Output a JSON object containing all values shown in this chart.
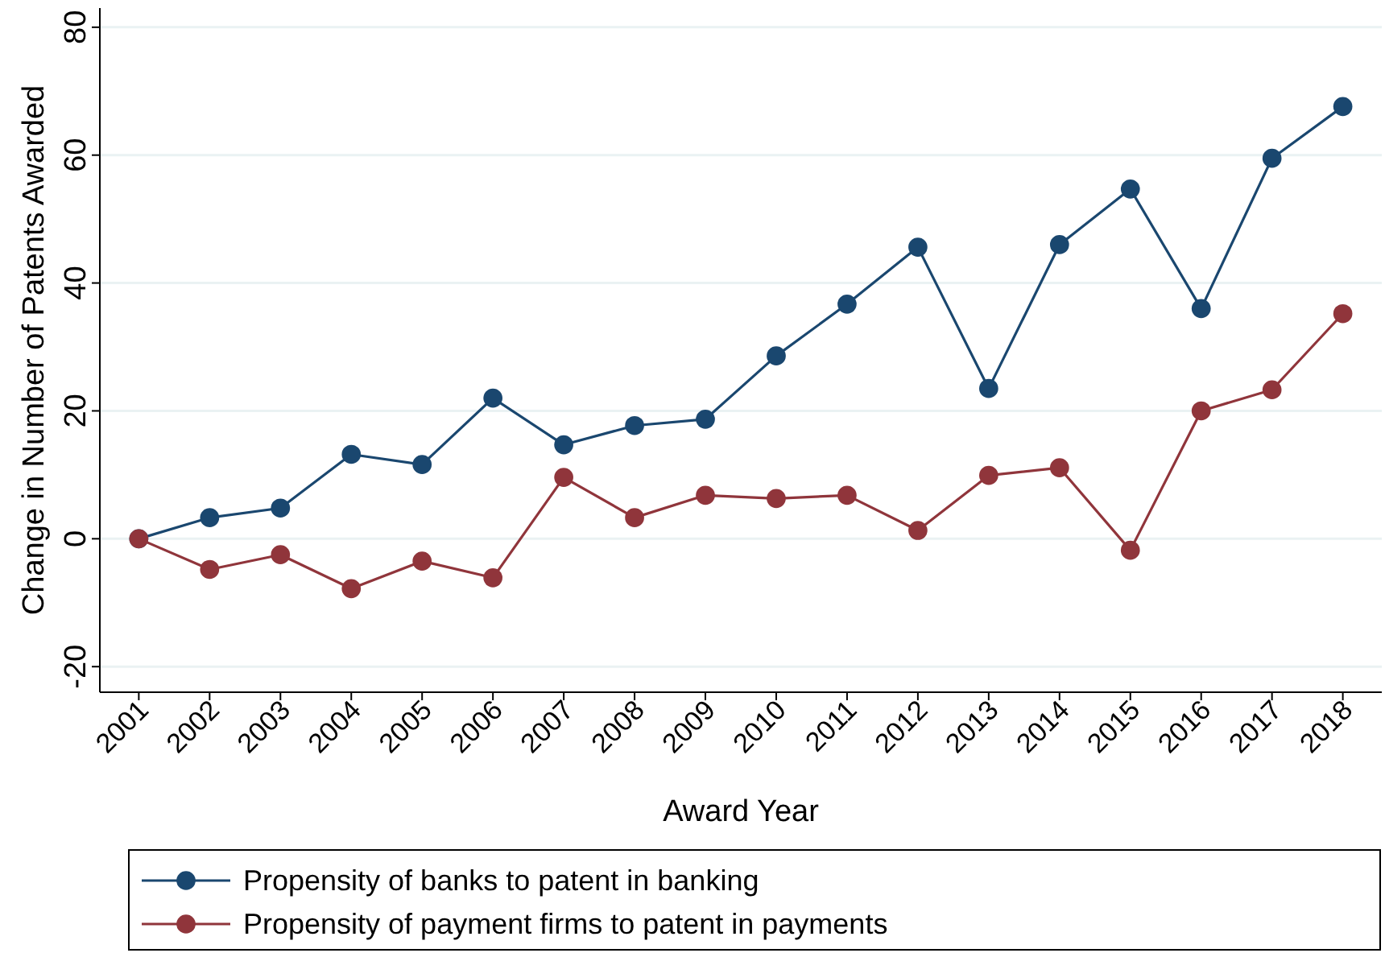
{
  "chart_data": {
    "type": "line",
    "xlabel": "Award Year",
    "ylabel": "Change in Number of Patents Awarded",
    "categories": [
      "2001",
      "2002",
      "2003",
      "2004",
      "2005",
      "2006",
      "2007",
      "2008",
      "2009",
      "2010",
      "2011",
      "2012",
      "2013",
      "2014",
      "2015",
      "2016",
      "2017",
      "2018"
    ],
    "series": [
      {
        "name": "Propensity of banks to patent in banking",
        "color": "#1a476f",
        "values": [
          0,
          3.3,
          4.8,
          13.2,
          11.6,
          22,
          14.7,
          17.7,
          18.7,
          28.6,
          36.7,
          45.6,
          23.5,
          46,
          54.7,
          36,
          59.5,
          67.6
        ]
      },
      {
        "name": "Propensity of payment firms to patent in payments",
        "color": "#90353b",
        "values": [
          0,
          -4.8,
          -2.5,
          -7.8,
          -3.5,
          -6.1,
          9.6,
          3.3,
          6.8,
          6.3,
          6.8,
          1.3,
          9.9,
          11.1,
          -1.8,
          20,
          23.3,
          35.2
        ]
      }
    ],
    "ylim": [
      -24,
      83
    ],
    "yticks": [
      -20,
      0,
      20,
      40,
      60,
      80
    ],
    "grid": "y",
    "legend": "bottom",
    "marker": "circle",
    "line_style": "solid"
  }
}
